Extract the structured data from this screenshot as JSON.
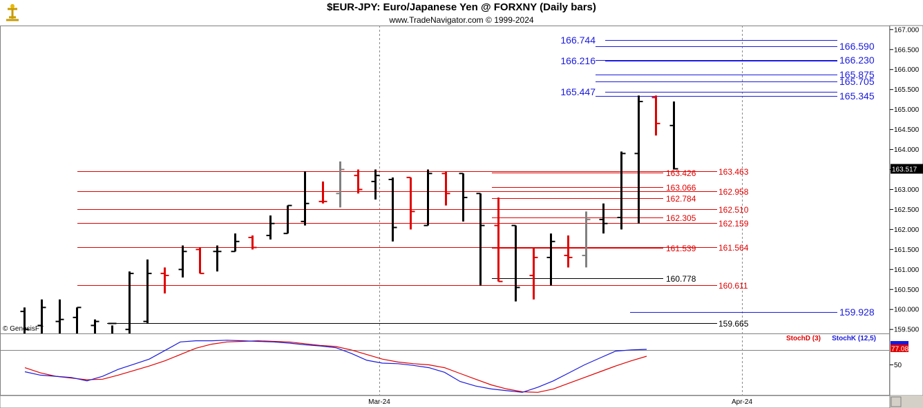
{
  "header": {
    "title": "$EUR-JPY:  Euro/Japanese Yen @ FORXNY  (Daily bars)",
    "subtitle": "www.TradeNavigator.com © 1999-2024",
    "watermark": "© GenesisFT"
  },
  "colors": {
    "up": "#000000",
    "down": "#e00000",
    "neutral": "#808080",
    "level_red": "#e00000",
    "level_blue": "#1a1adc",
    "level_black": "#000000",
    "stoch_d": "#e00000",
    "stoch_k": "#1a1adc",
    "last_price_bg": "#000000"
  },
  "chart_data": [
    {
      "type": "ohlc",
      "title": "$EUR-JPY:  Euro/Japanese Yen @ FORXNY  (Daily bars)",
      "x_ticks": [
        "Mar-24",
        "Apr-24"
      ],
      "ylim": [
        159.4,
        167.1
      ],
      "y_ticks": [
        "159.500",
        "160.000",
        "160.500",
        "161.000",
        "161.500",
        "162.000",
        "162.500",
        "163.000",
        "163.500",
        "164.000",
        "164.500",
        "165.000",
        "165.500",
        "166.000",
        "166.500",
        "167.000"
      ],
      "last_price": "163.517",
      "bars": [
        {
          "o": 159.95,
          "h": 160.05,
          "l": 159.4,
          "c": 159.5,
          "col": "up"
        },
        {
          "o": 159.6,
          "h": 160.25,
          "l": 159.4,
          "c": 160.05,
          "col": "up"
        },
        {
          "o": 159.7,
          "h": 160.25,
          "l": 159.4,
          "c": 159.75,
          "col": "up"
        },
        {
          "o": 159.8,
          "h": 160.05,
          "l": 159.4,
          "c": 160.05,
          "col": "up"
        },
        {
          "o": 159.6,
          "h": 159.75,
          "l": 159.4,
          "c": 159.7,
          "col": "up"
        },
        {
          "o": 159.65,
          "h": 159.6,
          "l": 159.4,
          "c": 159.65,
          "col": "up"
        },
        {
          "o": 159.5,
          "h": 160.95,
          "l": 159.4,
          "c": 160.9,
          "col": "up"
        },
        {
          "o": 159.7,
          "h": 161.25,
          "l": 159.65,
          "c": 160.9,
          "col": "up"
        },
        {
          "o": 160.9,
          "h": 161.05,
          "l": 160.4,
          "c": 160.85,
          "col": "down"
        },
        {
          "o": 161.0,
          "h": 161.6,
          "l": 160.8,
          "c": 161.45,
          "col": "up"
        },
        {
          "o": 161.5,
          "h": 161.55,
          "l": 160.9,
          "c": 160.9,
          "col": "down"
        },
        {
          "o": 161.45,
          "h": 161.6,
          "l": 160.95,
          "c": 161.45,
          "col": "up"
        },
        {
          "o": 161.45,
          "h": 161.9,
          "l": 161.45,
          "c": 161.7,
          "col": "up"
        },
        {
          "o": 161.8,
          "h": 161.85,
          "l": 161.5,
          "c": 161.55,
          "col": "down"
        },
        {
          "o": 161.85,
          "h": 162.35,
          "l": 161.75,
          "c": 162.15,
          "col": "up"
        },
        {
          "o": 161.9,
          "h": 162.6,
          "l": 161.9,
          "c": 162.6,
          "col": "up"
        },
        {
          "o": 162.2,
          "h": 163.45,
          "l": 162.1,
          "c": 162.65,
          "col": "up"
        },
        {
          "o": 162.7,
          "h": 163.2,
          "l": 162.65,
          "c": 162.7,
          "col": "down"
        },
        {
          "o": 162.9,
          "h": 163.7,
          "l": 162.55,
          "c": 163.5,
          "col": "neutral"
        },
        {
          "o": 163.35,
          "h": 163.5,
          "l": 162.9,
          "c": 163.0,
          "col": "down"
        },
        {
          "o": 163.2,
          "h": 163.5,
          "l": 162.75,
          "c": 163.35,
          "col": "up"
        },
        {
          "o": 163.25,
          "h": 163.3,
          "l": 161.7,
          "c": 162.05,
          "col": "up"
        },
        {
          "o": 163.3,
          "h": 163.3,
          "l": 162.0,
          "c": 162.45,
          "col": "down"
        },
        {
          "o": 162.1,
          "h": 163.5,
          "l": 162.1,
          "c": 163.4,
          "col": "up"
        },
        {
          "o": 163.4,
          "h": 163.45,
          "l": 162.6,
          "c": 162.9,
          "col": "down"
        },
        {
          "o": 163.4,
          "h": 163.4,
          "l": 162.2,
          "c": 162.8,
          "col": "up"
        },
        {
          "o": 162.9,
          "h": 162.9,
          "l": 160.6,
          "c": 162.1,
          "col": "up"
        },
        {
          "o": 162.1,
          "h": 162.8,
          "l": 160.7,
          "c": 160.7,
          "col": "down"
        },
        {
          "o": 162.1,
          "h": 162.1,
          "l": 160.2,
          "c": 160.55,
          "col": "up"
        },
        {
          "o": 160.85,
          "h": 161.55,
          "l": 160.25,
          "c": 161.3,
          "col": "down"
        },
        {
          "o": 161.3,
          "h": 161.9,
          "l": 160.6,
          "c": 161.7,
          "col": "up"
        },
        {
          "o": 161.35,
          "h": 161.85,
          "l": 161.05,
          "c": 161.3,
          "col": "down"
        },
        {
          "o": 161.35,
          "h": 162.45,
          "l": 161.05,
          "c": 162.25,
          "col": "neutral"
        },
        {
          "o": 162.25,
          "h": 162.65,
          "l": 161.9,
          "c": 162.15,
          "col": "up"
        },
        {
          "o": 162.3,
          "h": 163.95,
          "l": 162.0,
          "c": 163.9,
          "col": "up"
        },
        {
          "o": 163.9,
          "h": 165.35,
          "l": 162.15,
          "c": 165.2,
          "col": "up"
        },
        {
          "o": 165.3,
          "h": 165.35,
          "l": 164.35,
          "c": 164.65,
          "col": "down"
        },
        {
          "o": 164.6,
          "h": 165.2,
          "l": 163.5,
          "c": 163.517,
          "col": "up"
        }
      ],
      "levels": [
        {
          "value": "163.426",
          "color": "red",
          "label_col": "inner"
        },
        {
          "value": "163.463",
          "color": "red",
          "label_col": "outer"
        },
        {
          "value": "163.066",
          "color": "red",
          "label_col": "inner"
        },
        {
          "value": "162.958",
          "color": "red",
          "label_col": "outer"
        },
        {
          "value": "162.784",
          "color": "red",
          "label_col": "inner"
        },
        {
          "value": "162.510",
          "color": "red",
          "label_col": "outer"
        },
        {
          "value": "162.305",
          "color": "red",
          "label_col": "inner"
        },
        {
          "value": "162.159",
          "color": "red",
          "label_col": "outer"
        },
        {
          "value": "161.539",
          "color": "red",
          "label_col": "inner"
        },
        {
          "value": "161.564",
          "color": "red",
          "label_col": "outer"
        },
        {
          "value": "160.778",
          "color": "black",
          "label_col": "inner"
        },
        {
          "value": "160.611",
          "color": "red",
          "label_col": "outer"
        },
        {
          "value": "159.665",
          "color": "black",
          "label_col": "outer"
        },
        {
          "value": "159.928",
          "color": "blue",
          "label_col": "right"
        },
        {
          "value": "165.447",
          "color": "blue",
          "label_col": "left"
        },
        {
          "value": "165.345",
          "color": "blue",
          "label_col": "right"
        },
        {
          "value": "165.705",
          "color": "blue",
          "label_col": "right"
        },
        {
          "value": "165.875",
          "color": "blue",
          "label_col": "right"
        },
        {
          "value": "166.216",
          "color": "blue",
          "label_col": "left"
        },
        {
          "value": "166.230",
          "color": "blue",
          "label_col": "right"
        },
        {
          "value": "166.744",
          "color": "blue",
          "label_col": "left"
        },
        {
          "value": "166.590",
          "color": "blue",
          "label_col": "right"
        }
      ]
    },
    {
      "type": "line",
      "series": [
        {
          "name": "StochD (3)",
          "color": "red",
          "values": [
            45,
            36,
            30,
            27,
            24,
            25,
            32,
            40,
            48,
            57,
            68,
            79,
            86,
            90,
            91,
            92,
            91,
            90,
            87,
            84,
            82,
            76,
            68,
            60,
            55,
            52,
            50,
            45,
            35,
            25,
            15,
            8,
            3,
            2,
            8,
            18,
            28,
            38,
            48,
            57,
            65
          ]
        },
        {
          "name": "StochK (12,5)",
          "color": "blue",
          "values": [
            38,
            32,
            30,
            28,
            22,
            30,
            42,
            51,
            60,
            75,
            90,
            92,
            92,
            93,
            92,
            91,
            90,
            88,
            85,
            83,
            80,
            70,
            58,
            53,
            52,
            49,
            45,
            37,
            21,
            13,
            8,
            5,
            2,
            11,
            22,
            36,
            50,
            62,
            74,
            76,
            77.08
          ]
        }
      ],
      "ylim": [
        0,
        100
      ],
      "y_ticks": [
        "50"
      ],
      "last_value": "77.08"
    }
  ]
}
